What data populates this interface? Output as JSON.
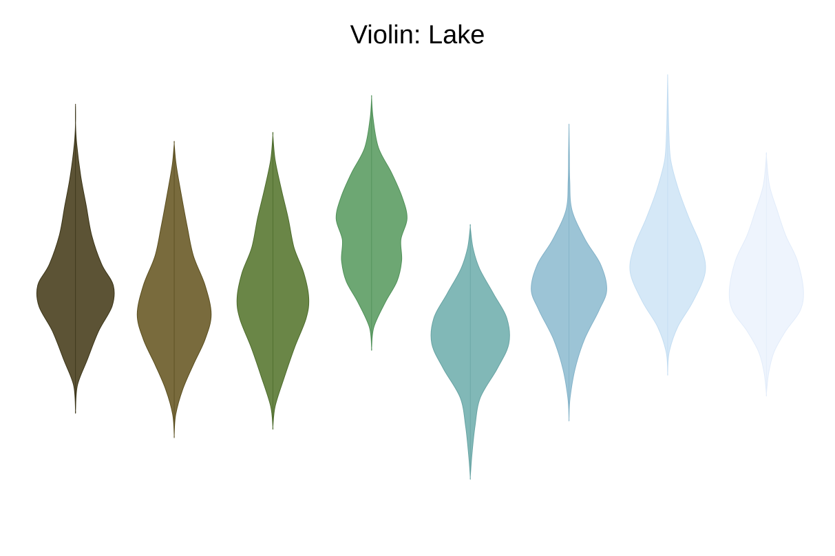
{
  "chart_data": {
    "type": "violin",
    "title": "Violin: Lake",
    "xlabel": "",
    "ylabel": "",
    "grid": false,
    "legend": "none",
    "axes_visible": false,
    "ylim": [
      0,
      1
    ],
    "series": [
      {
        "color": "#5c5335",
        "stroke": "#3a3418",
        "min": 0.18,
        "max": 0.91,
        "profile": [
          [
            0.18,
            0.0
          ],
          [
            0.24,
            0.05
          ],
          [
            0.3,
            0.3
          ],
          [
            0.37,
            0.6
          ],
          [
            0.43,
            0.95
          ],
          [
            0.48,
            0.98
          ],
          [
            0.53,
            0.68
          ],
          [
            0.6,
            0.42
          ],
          [
            0.67,
            0.28
          ],
          [
            0.74,
            0.14
          ],
          [
            0.82,
            0.03
          ],
          [
            0.87,
            0.0
          ],
          [
            0.91,
            0.0
          ]
        ]
      },
      {
        "color": "#796b3d",
        "stroke": "#5a4e1f",
        "min": 0.12,
        "max": 0.82,
        "profile": [
          [
            0.12,
            0.0
          ],
          [
            0.17,
            0.04
          ],
          [
            0.23,
            0.22
          ],
          [
            0.29,
            0.5
          ],
          [
            0.35,
            0.8
          ],
          [
            0.41,
            0.96
          ],
          [
            0.48,
            0.8
          ],
          [
            0.55,
            0.5
          ],
          [
            0.62,
            0.34
          ],
          [
            0.7,
            0.18
          ],
          [
            0.77,
            0.05
          ],
          [
            0.82,
            0.0
          ]
        ]
      },
      {
        "color": "#6a8647",
        "stroke": "#4c6b2c",
        "min": 0.14,
        "max": 0.84,
        "profile": [
          [
            0.14,
            0.0
          ],
          [
            0.19,
            0.06
          ],
          [
            0.26,
            0.3
          ],
          [
            0.33,
            0.56
          ],
          [
            0.4,
            0.86
          ],
          [
            0.45,
            0.93
          ],
          [
            0.51,
            0.8
          ],
          [
            0.57,
            0.55
          ],
          [
            0.64,
            0.4
          ],
          [
            0.71,
            0.22
          ],
          [
            0.78,
            0.06
          ],
          [
            0.84,
            0.0
          ]
        ]
      },
      {
        "color": "#6da773",
        "stroke": "#4f9058",
        "min": 0.33,
        "max": 0.93,
        "profile": [
          [
            0.33,
            0.0
          ],
          [
            0.38,
            0.06
          ],
          [
            0.44,
            0.36
          ],
          [
            0.49,
            0.66
          ],
          [
            0.54,
            0.78
          ],
          [
            0.59,
            0.76
          ],
          [
            0.64,
            0.92
          ],
          [
            0.69,
            0.8
          ],
          [
            0.75,
            0.52
          ],
          [
            0.81,
            0.18
          ],
          [
            0.88,
            0.04
          ],
          [
            0.93,
            0.0
          ]
        ]
      },
      {
        "color": "#81b8b7",
        "stroke": "#67a3a3",
        "min": 0.02,
        "max": 0.62,
        "profile": [
          [
            0.02,
            0.0
          ],
          [
            0.07,
            0.04
          ],
          [
            0.14,
            0.12
          ],
          [
            0.21,
            0.26
          ],
          [
            0.28,
            0.7
          ],
          [
            0.34,
            1.0
          ],
          [
            0.4,
            0.95
          ],
          [
            0.46,
            0.6
          ],
          [
            0.52,
            0.24
          ],
          [
            0.57,
            0.07
          ],
          [
            0.62,
            0.0
          ]
        ]
      },
      {
        "color": "#9cc4d6",
        "stroke": "#83b2c8",
        "min": 0.16,
        "max": 0.86,
        "profile": [
          [
            0.16,
            0.0
          ],
          [
            0.21,
            0.03
          ],
          [
            0.28,
            0.16
          ],
          [
            0.35,
            0.4
          ],
          [
            0.42,
            0.78
          ],
          [
            0.47,
            0.98
          ],
          [
            0.53,
            0.82
          ],
          [
            0.59,
            0.42
          ],
          [
            0.66,
            0.08
          ],
          [
            0.73,
            0.02
          ],
          [
            0.8,
            0.01
          ],
          [
            0.86,
            0.0
          ]
        ]
      },
      {
        "color": "#d5e8f7",
        "stroke": "#c3ddf2",
        "min": 0.27,
        "max": 0.98,
        "profile": [
          [
            0.27,
            0.0
          ],
          [
            0.32,
            0.04
          ],
          [
            0.38,
            0.26
          ],
          [
            0.44,
            0.65
          ],
          [
            0.51,
            0.97
          ],
          [
            0.57,
            0.88
          ],
          [
            0.64,
            0.56
          ],
          [
            0.71,
            0.28
          ],
          [
            0.78,
            0.08
          ],
          [
            0.85,
            0.03
          ],
          [
            0.93,
            0.01
          ],
          [
            0.98,
            0.0
          ]
        ]
      },
      {
        "color": "#eef4fd",
        "stroke": "#e2ecfa",
        "min": 0.22,
        "max": 0.79,
        "profile": [
          [
            0.22,
            0.0
          ],
          [
            0.27,
            0.06
          ],
          [
            0.32,
            0.2
          ],
          [
            0.37,
            0.5
          ],
          [
            0.42,
            0.88
          ],
          [
            0.47,
            0.96
          ],
          [
            0.54,
            0.8
          ],
          [
            0.6,
            0.5
          ],
          [
            0.66,
            0.28
          ],
          [
            0.72,
            0.08
          ],
          [
            0.79,
            0.0
          ]
        ]
      }
    ]
  }
}
